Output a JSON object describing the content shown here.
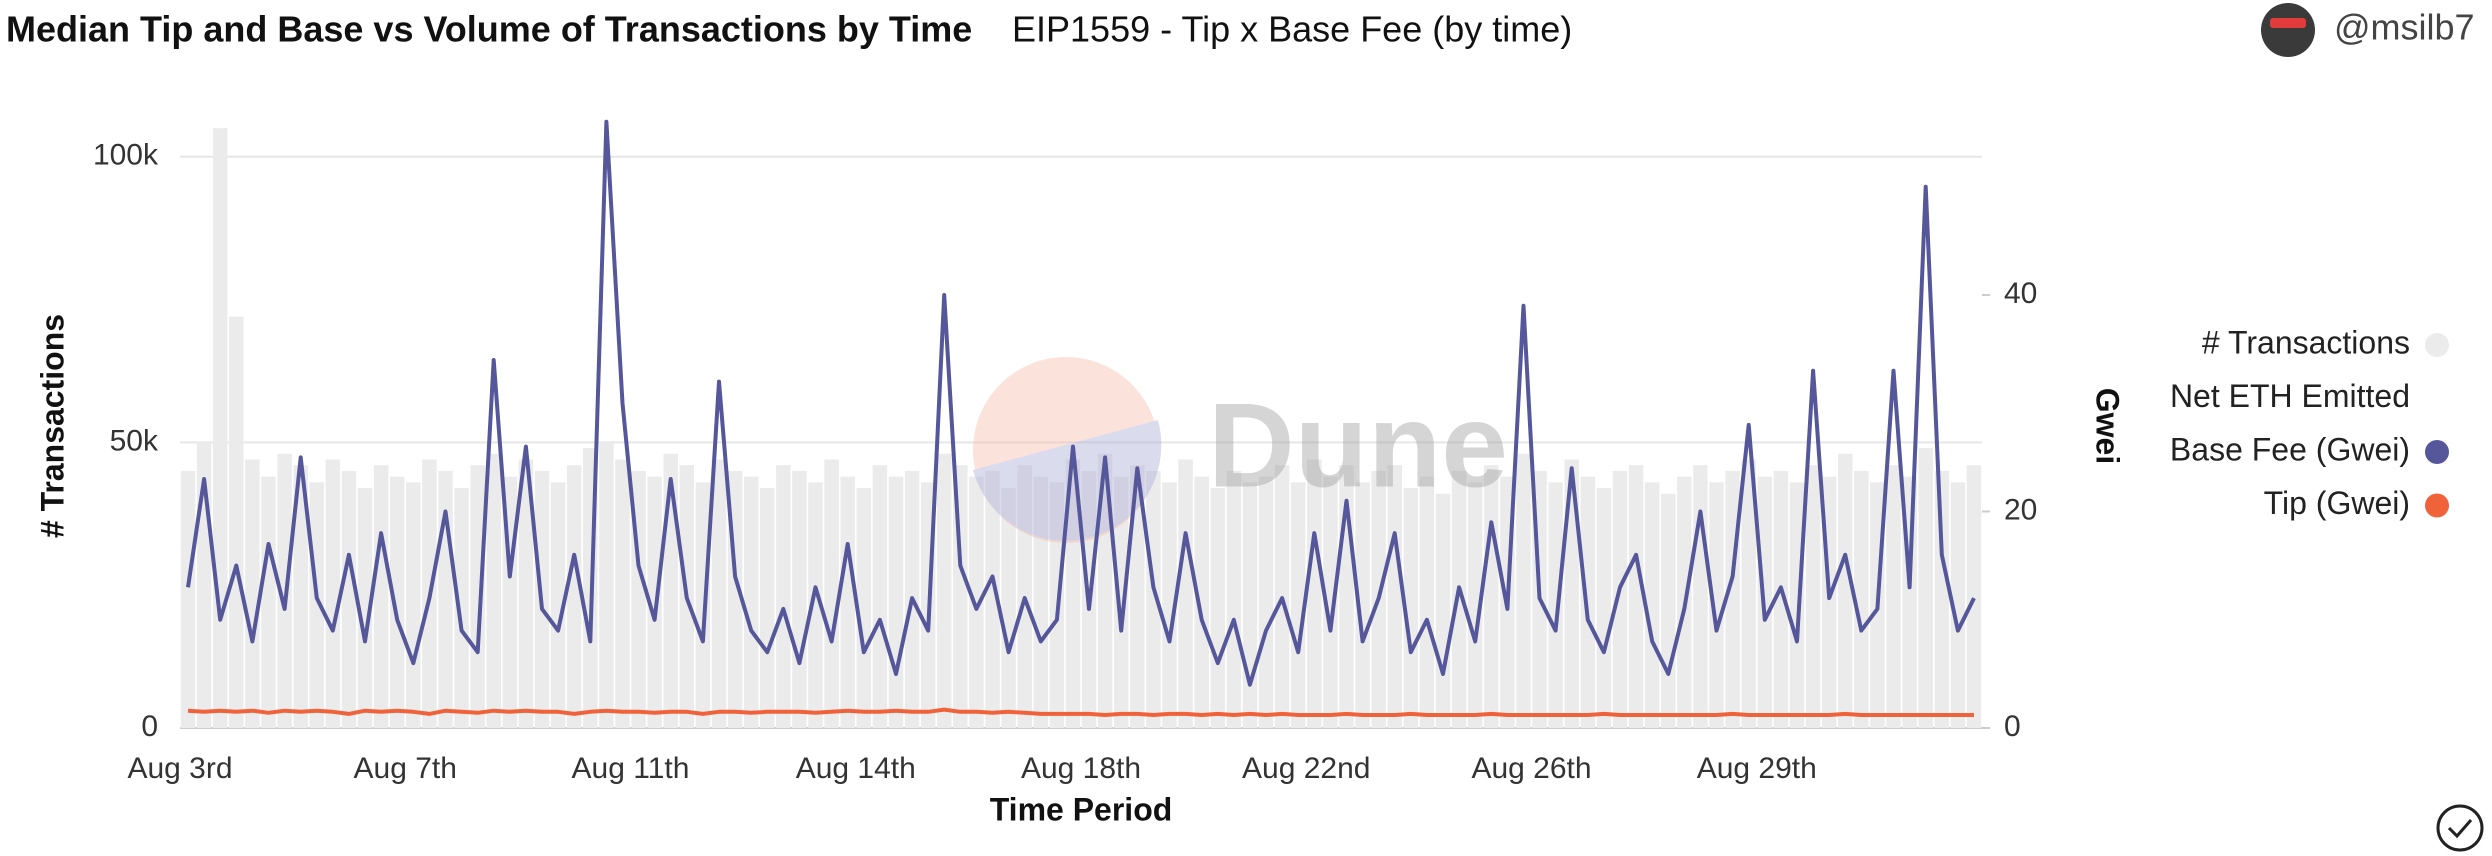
{
  "chart_data": {
    "type": "combo",
    "title": "Median Tip and Base vs Volume of Transactions by Time",
    "subtitle": "EIP1559 - Tip x Base Fee (by time)",
    "author": "@msilb7",
    "watermark": "Dune",
    "x_label": "Time Period",
    "y_label": "# Transactions",
    "y2_label": "Gwei",
    "categories": [
      "Aug 3rd",
      null,
      null,
      null,
      null,
      null,
      null,
      null,
      null,
      null,
      null,
      null,
      null,
      null,
      "Aug 7th",
      null,
      null,
      null,
      null,
      null,
      null,
      null,
      null,
      null,
      null,
      null,
      null,
      null,
      "Aug 11th",
      null,
      null,
      null,
      null,
      null,
      null,
      null,
      null,
      null,
      null,
      null,
      null,
      null,
      "Aug 14th",
      null,
      null,
      null,
      null,
      null,
      null,
      null,
      null,
      null,
      null,
      null,
      null,
      null,
      "Aug 18th",
      null,
      null,
      null,
      null,
      null,
      null,
      null,
      null,
      null,
      null,
      null,
      null,
      null,
      "Aug 22nd",
      null,
      null,
      null,
      null,
      null,
      null,
      null,
      null,
      null,
      null,
      null,
      null,
      null,
      "Aug 26th",
      null,
      null,
      null,
      null,
      null,
      null,
      null,
      null,
      null,
      null,
      null,
      null,
      null,
      "Aug 29th",
      null,
      null,
      null,
      null,
      null,
      null,
      null,
      null,
      null,
      null,
      null,
      null,
      null
    ],
    "ylim": [
      0,
      108000
    ],
    "yticks": [
      0,
      {
        "value": 50000,
        "label": "50k"
      },
      {
        "value": 100000,
        "label": "100k"
      }
    ],
    "y2lim": [
      0,
      57
    ],
    "y2ticks": [
      0,
      20,
      40
    ],
    "grid": true,
    "legend": "right",
    "series": [
      {
        "name": "# Transactions",
        "kind": "bar",
        "color": "#ebebeb",
        "values": [
          45000,
          50000,
          105000,
          72000,
          47000,
          44000,
          48000,
          46000,
          43000,
          47000,
          45000,
          42000,
          46000,
          44000,
          43000,
          47000,
          45000,
          42000,
          46000,
          48000,
          44000,
          47000,
          45000,
          43000,
          46000,
          49000,
          50000,
          47000,
          45000,
          44000,
          48000,
          46000,
          43000,
          47000,
          45000,
          44000,
          42000,
          46000,
          45000,
          43000,
          47000,
          44000,
          42000,
          46000,
          44000,
          45000,
          43000,
          48000,
          46000,
          44000,
          45000,
          42000,
          46000,
          44000,
          43000,
          47000,
          45000,
          48000,
          44000,
          46000,
          45000,
          43000,
          47000,
          44000,
          42000,
          45000,
          43000,
          44000,
          46000,
          43000,
          47000,
          44000,
          46000,
          43000,
          45000,
          46000,
          42000,
          44000,
          41000,
          45000,
          43000,
          46000,
          44000,
          48000,
          45000,
          43000,
          47000,
          44000,
          42000,
          45000,
          46000,
          43000,
          41000,
          44000,
          46000,
          43000,
          45000,
          47000,
          44000,
          45000,
          43000,
          46000,
          44000,
          48000,
          45000,
          43000,
          46000,
          44000,
          49000,
          45000,
          43000,
          46000
        ]
      },
      {
        "name": "Net ETH Emitted",
        "kind": "line",
        "color": "#ffffff",
        "values": [
          null,
          null,
          null,
          null,
          null,
          null,
          null,
          null,
          null,
          null,
          null,
          null,
          null,
          null,
          null,
          null,
          null,
          null,
          null,
          null,
          null,
          null,
          null,
          null,
          null,
          null,
          null,
          null,
          null,
          null,
          null,
          null,
          null,
          null,
          null,
          null,
          null,
          null,
          null,
          null,
          null,
          null,
          null,
          null,
          null,
          null,
          null,
          null,
          null,
          null,
          null,
          null,
          null,
          null,
          null,
          null,
          null,
          null,
          null,
          null,
          null,
          null,
          null,
          null,
          null,
          null,
          null,
          null,
          null,
          null,
          null,
          null,
          null,
          null,
          null,
          null,
          null,
          null,
          null,
          null,
          null,
          null,
          null,
          null,
          null,
          null,
          null,
          null,
          null,
          null,
          null,
          null,
          null,
          null,
          null,
          null,
          null,
          null,
          null,
          null,
          null,
          null,
          null,
          null,
          null,
          null,
          null,
          null,
          null,
          null,
          null,
          null
        ]
      },
      {
        "name": "Base Fee (Gwei)",
        "kind": "line",
        "axis": "y2",
        "color": "#55579a",
        "values": [
          13,
          23,
          10,
          15,
          8,
          17,
          11,
          25,
          12,
          9,
          16,
          8,
          18,
          10,
          6,
          12,
          20,
          9,
          7,
          34,
          14,
          26,
          11,
          9,
          16,
          8,
          56,
          30,
          15,
          10,
          23,
          12,
          8,
          32,
          14,
          9,
          7,
          11,
          6,
          13,
          8,
          17,
          7,
          10,
          5,
          12,
          9,
          40,
          15,
          11,
          14,
          7,
          12,
          8,
          10,
          26,
          11,
          25,
          9,
          24,
          13,
          8,
          18,
          10,
          6,
          10,
          4,
          9,
          12,
          7,
          18,
          9,
          21,
          8,
          12,
          18,
          7,
          10,
          5,
          13,
          8,
          19,
          11,
          39,
          12,
          9,
          24,
          10,
          7,
          13,
          16,
          8,
          5,
          11,
          20,
          9,
          14,
          28,
          10,
          13,
          8,
          33,
          12,
          16,
          9,
          11,
          33,
          13,
          50,
          16,
          9,
          12
        ]
      },
      {
        "name": "Tip (Gwei)",
        "kind": "line",
        "axis": "y2",
        "color": "#f0623a",
        "values": [
          1.6,
          1.5,
          1.6,
          1.5,
          1.6,
          1.4,
          1.6,
          1.5,
          1.6,
          1.5,
          1.3,
          1.6,
          1.5,
          1.6,
          1.5,
          1.3,
          1.6,
          1.5,
          1.4,
          1.6,
          1.5,
          1.6,
          1.5,
          1.5,
          1.3,
          1.5,
          1.6,
          1.5,
          1.5,
          1.4,
          1.5,
          1.5,
          1.3,
          1.5,
          1.5,
          1.4,
          1.5,
          1.5,
          1.5,
          1.4,
          1.5,
          1.6,
          1.5,
          1.5,
          1.6,
          1.5,
          1.5,
          1.7,
          1.5,
          1.5,
          1.4,
          1.5,
          1.4,
          1.3,
          1.3,
          1.3,
          1.3,
          1.2,
          1.3,
          1.3,
          1.2,
          1.3,
          1.3,
          1.2,
          1.3,
          1.2,
          1.3,
          1.2,
          1.3,
          1.2,
          1.2,
          1.2,
          1.3,
          1.2,
          1.2,
          1.2,
          1.3,
          1.2,
          1.2,
          1.2,
          1.2,
          1.3,
          1.2,
          1.2,
          1.2,
          1.2,
          1.2,
          1.2,
          1.3,
          1.2,
          1.2,
          1.2,
          1.2,
          1.2,
          1.2,
          1.2,
          1.3,
          1.2,
          1.2,
          1.2,
          1.2,
          1.2,
          1.2,
          1.3,
          1.2,
          1.2,
          1.2,
          1.2,
          1.2,
          1.2,
          1.2,
          1.2
        ]
      }
    ]
  }
}
